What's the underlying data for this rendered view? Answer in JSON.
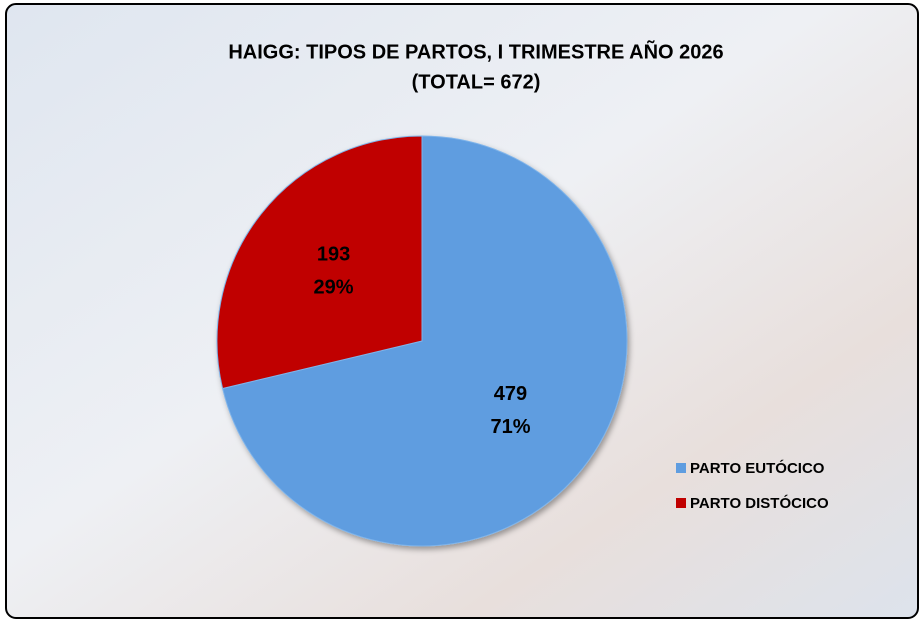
{
  "chart_data": {
    "type": "pie",
    "title": "HAIGG: TIPOS DE PARTOS, I TRIMESTRE AÑO 2026",
    "subtitle": "(TOTAL=  672)",
    "categories": [
      "PARTO EUTÓCICO",
      "PARTO DISTÓCICO"
    ],
    "values": [
      479,
      193
    ],
    "percentages": [
      71,
      29
    ],
    "percentage_labels": [
      "71%",
      "29%"
    ],
    "series_colors": [
      "#5f9de0",
      "#c00000"
    ],
    "legend": "right"
  }
}
